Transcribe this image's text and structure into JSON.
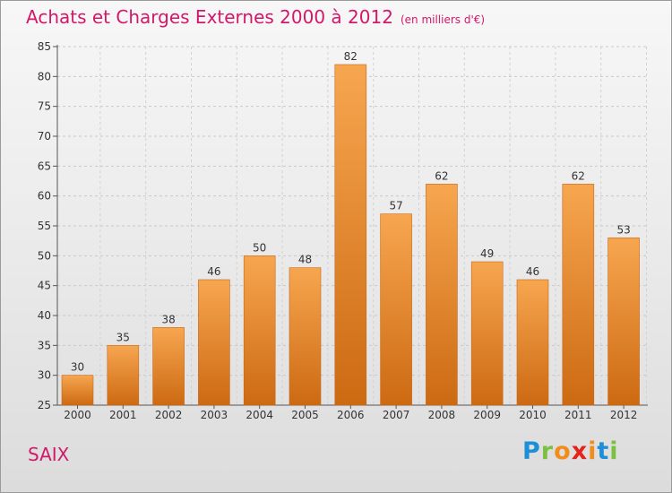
{
  "title": "Achats et Charges Externes 2000 à 2012",
  "subtitle": "(en milliers d'€)",
  "place_label": "SAIX",
  "logo": {
    "letters": [
      "P",
      "r",
      "o",
      "x",
      "i",
      "t",
      "i"
    ],
    "colors": [
      "#1c8fd6",
      "#7ac142",
      "#f28c1a",
      "#e5231b",
      "#f28c1a",
      "#1c8fd6",
      "#7ac142"
    ]
  },
  "colors": {
    "bar_top": "#f7a650",
    "bar_bottom": "#cc6a12",
    "bar_stroke": "#c8681a",
    "accent": "#d2186b"
  },
  "chart_data": {
    "type": "bar",
    "categories": [
      "2000",
      "2001",
      "2002",
      "2003",
      "2004",
      "2005",
      "2006",
      "2007",
      "2008",
      "2009",
      "2010",
      "2011",
      "2012"
    ],
    "values": [
      30,
      35,
      38,
      46,
      50,
      48,
      82,
      57,
      62,
      49,
      46,
      62,
      53
    ],
    "ylim": [
      25,
      85
    ],
    "yticks": [
      25,
      30,
      35,
      40,
      45,
      50,
      55,
      60,
      65,
      70,
      75,
      80,
      85
    ],
    "grid": true,
    "data_labels": true
  }
}
